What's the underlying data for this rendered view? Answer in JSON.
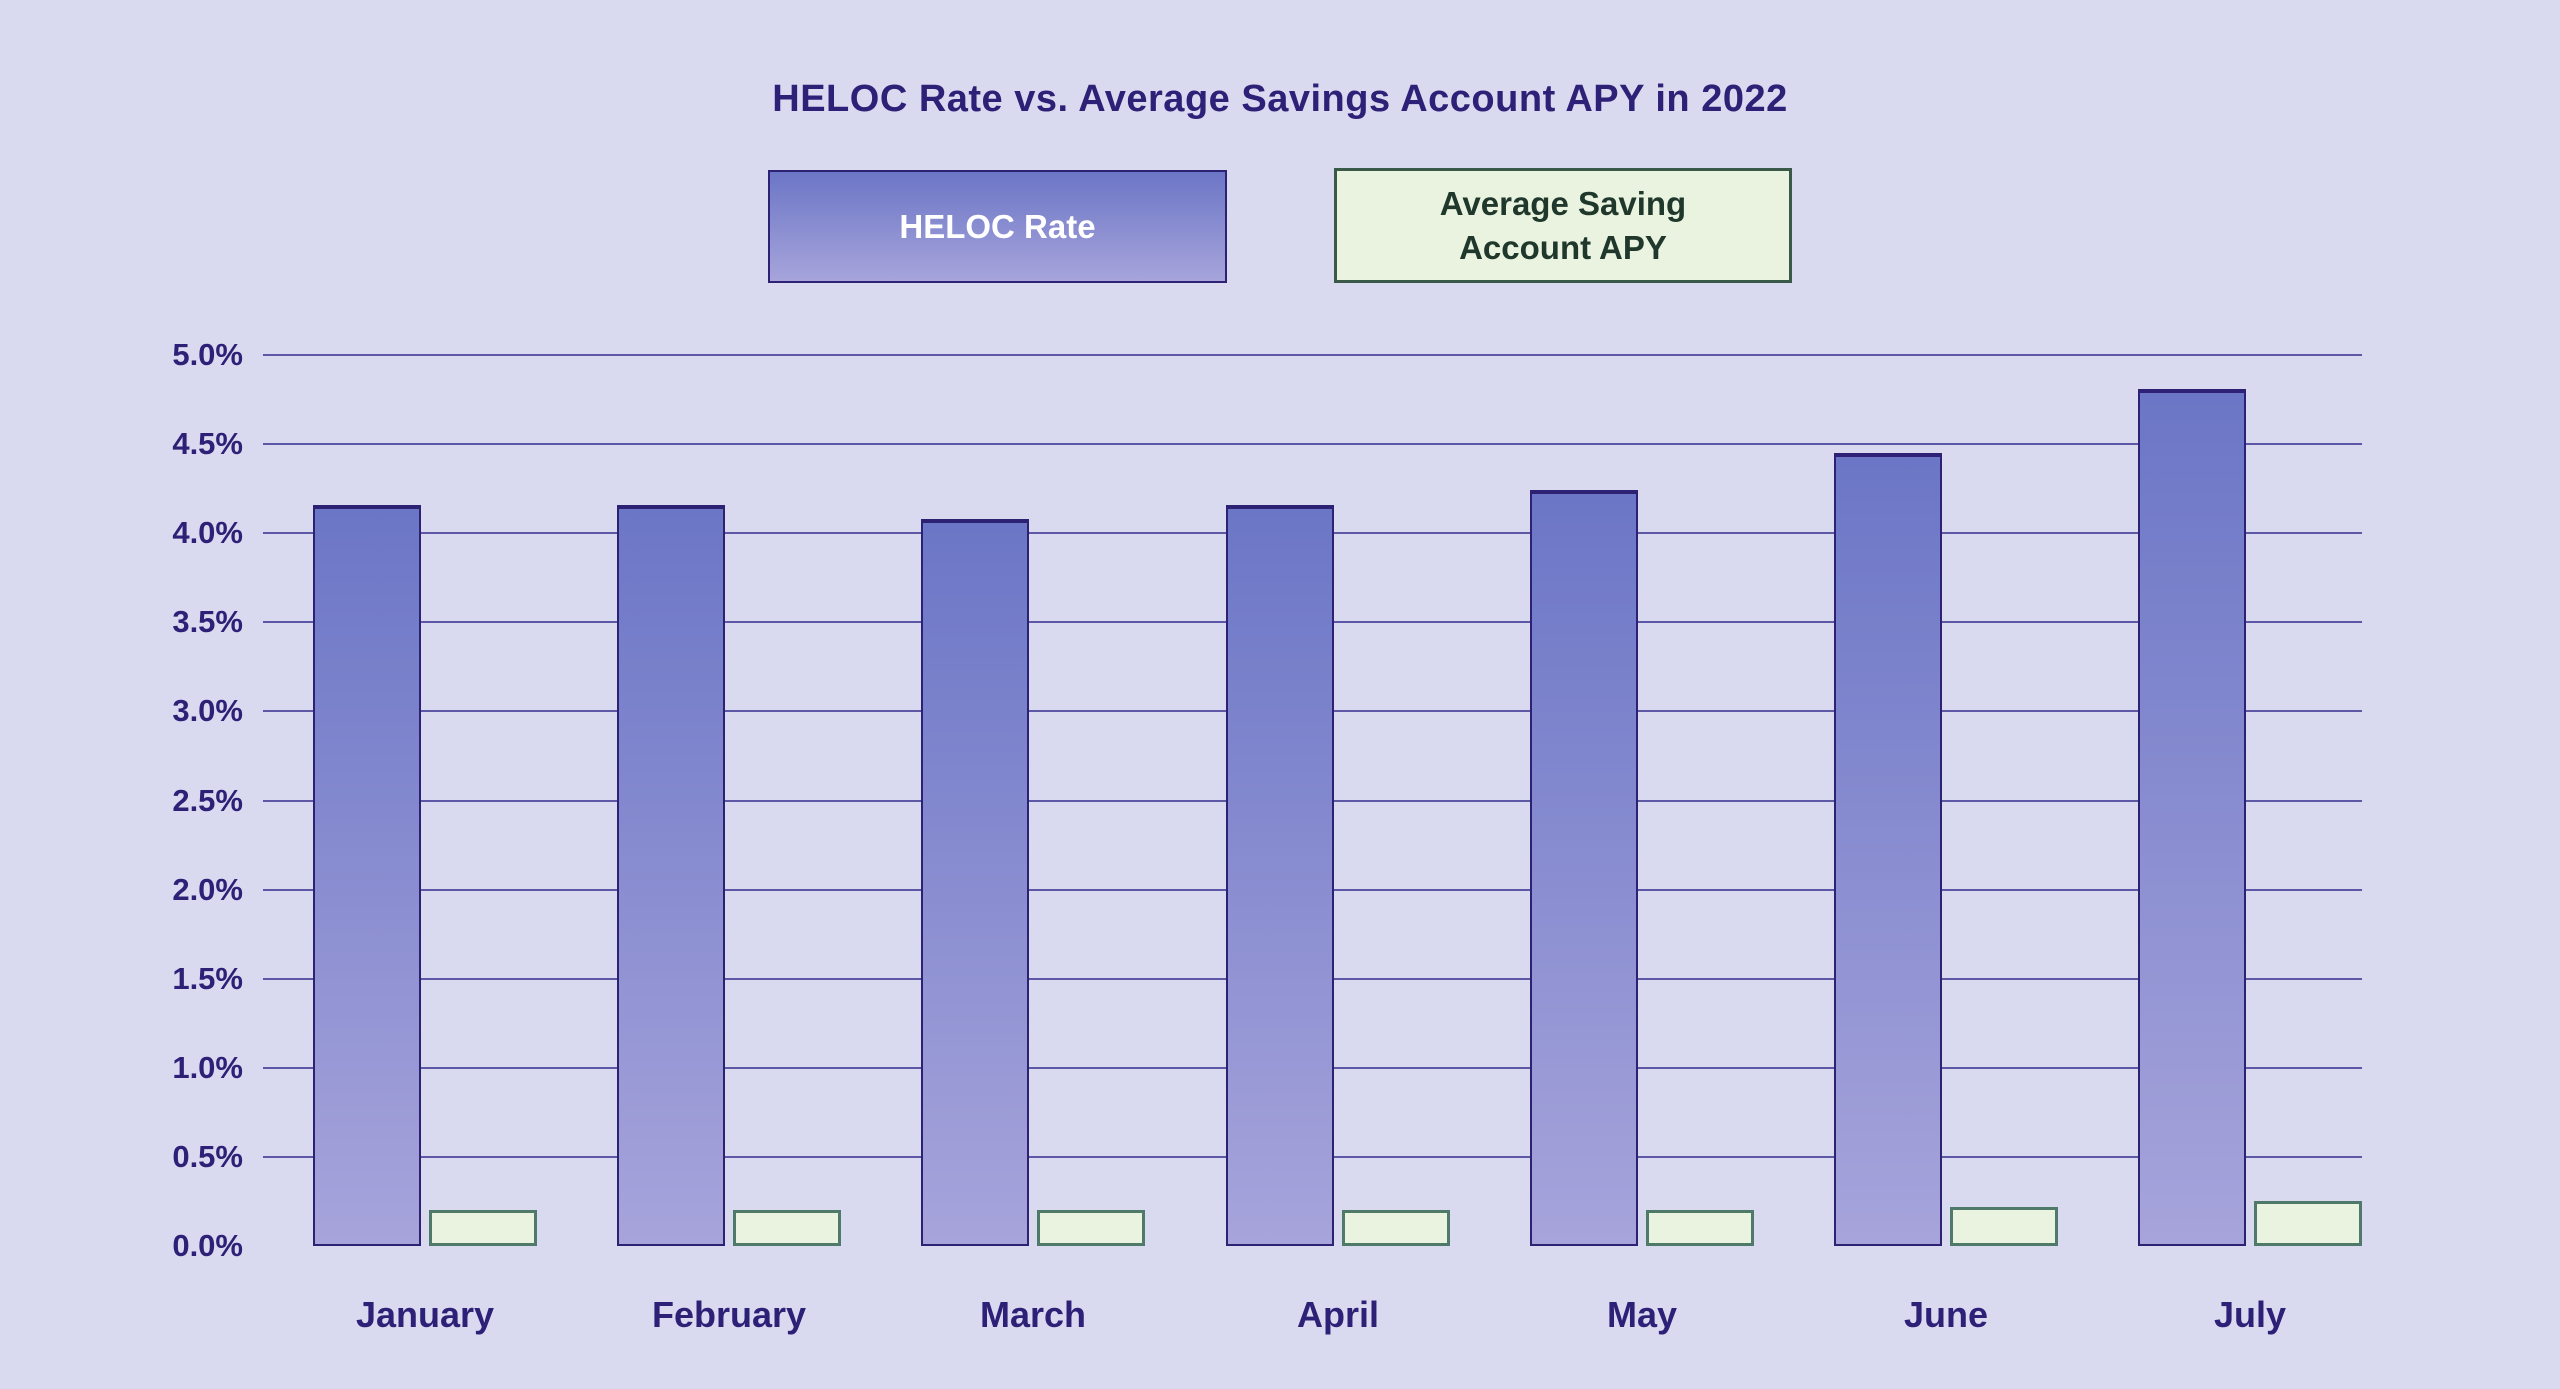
{
  "title": "HELOC Rate vs. Average Savings Account APY in 2022",
  "legend": [
    {
      "label": "HELOC Rate",
      "swatch": "purple-gradient"
    },
    {
      "label": "Average Saving Account APY",
      "swatch": "light-green"
    }
  ],
  "chart_data": {
    "type": "bar",
    "title": "HELOC Rate vs. Average Savings Account APY in 2022",
    "categories": [
      "January",
      "February",
      "March",
      "April",
      "May",
      "June",
      "July"
    ],
    "series": [
      {
        "name": "HELOC Rate",
        "values": [
          4.16,
          4.16,
          4.08,
          4.16,
          4.24,
          4.45,
          4.81
        ]
      },
      {
        "name": "Average Saving Account APY",
        "values": [
          0.2,
          0.2,
          0.2,
          0.2,
          0.2,
          0.22,
          0.25
        ]
      }
    ],
    "xlabel": "",
    "ylabel": "",
    "ylim": [
      0,
      5
    ],
    "y_ticks": [
      "5.0%",
      "4.5%",
      "4.0%",
      "3.5%",
      "3.0%",
      "2.5%",
      "2.0%",
      "1.5%",
      "1.0%",
      "0.5%",
      "0.0%"
    ],
    "grid": true,
    "gridline_at_zero": false,
    "legend_position": "top-center"
  },
  "colors": {
    "background": "#d9daf0",
    "ink": "#2d2177",
    "grid": "#5d58a6",
    "bar_gradient_top": "#6b76c6",
    "bar_gradient_bottom": "#a7a4db",
    "bar_border": "#2c2173",
    "green_fill": "#e9f3df",
    "green_bar_border": "#4f7a6a",
    "green_legend_border": "#3a5948",
    "green_ink": "#20382c"
  }
}
